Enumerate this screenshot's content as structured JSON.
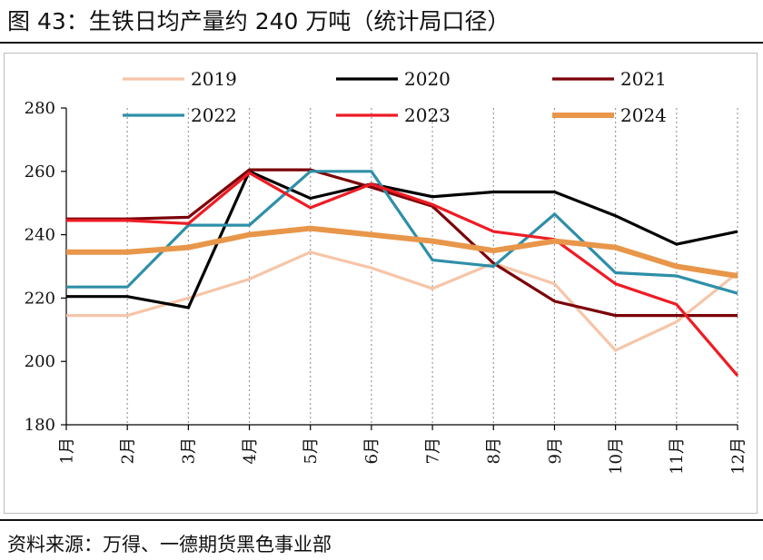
{
  "header": {
    "title": "图 43：生铁日均产量约 240 万吨（统计局口径）"
  },
  "footer": {
    "source": "资料来源：万得、一德期货黑色事业部"
  },
  "chart_data": {
    "type": "line",
    "categories": [
      "1月",
      "2月",
      "3月",
      "4月",
      "5月",
      "6月",
      "7月",
      "8月",
      "9月",
      "10月",
      "11月",
      "12月"
    ],
    "ylim": [
      180,
      280
    ],
    "yticks": [
      180,
      200,
      220,
      240,
      260,
      280
    ],
    "grid": "vertical-dotted",
    "legend_position": "top",
    "series": [
      {
        "name": "2019",
        "color": "#F6C5A8",
        "values": [
          214.5,
          214.5,
          220,
          226,
          234.5,
          229.5,
          223,
          231,
          224.5,
          203.5,
          212.5,
          228
        ]
      },
      {
        "name": "2020",
        "color": "#000000",
        "values": [
          220.5,
          220.5,
          217,
          260,
          251.5,
          256,
          252,
          253.5,
          253.5,
          246,
          237,
          241
        ]
      },
      {
        "name": "2021",
        "color": "#7B0008",
        "values": [
          245,
          245,
          245.5,
          260.5,
          260.5,
          255,
          249,
          231,
          219,
          214.5,
          214.5,
          214.5
        ]
      },
      {
        "name": "2022",
        "color": "#2E8FA8",
        "values": [
          223.5,
          223.5,
          243,
          243,
          260,
          260,
          232,
          230,
          246.5,
          228,
          227,
          221.5
        ]
      },
      {
        "name": "2023",
        "color": "#EE1C25",
        "values": [
          244.5,
          244.5,
          243.5,
          259.5,
          248.5,
          256,
          249.5,
          241,
          238.5,
          224.5,
          218,
          195.5
        ]
      },
      {
        "name": "2024",
        "color": "#E8964A",
        "values": [
          234.5,
          234.5,
          236,
          240,
          242,
          240,
          238,
          235,
          238,
          236,
          230,
          227
        ]
      }
    ]
  }
}
